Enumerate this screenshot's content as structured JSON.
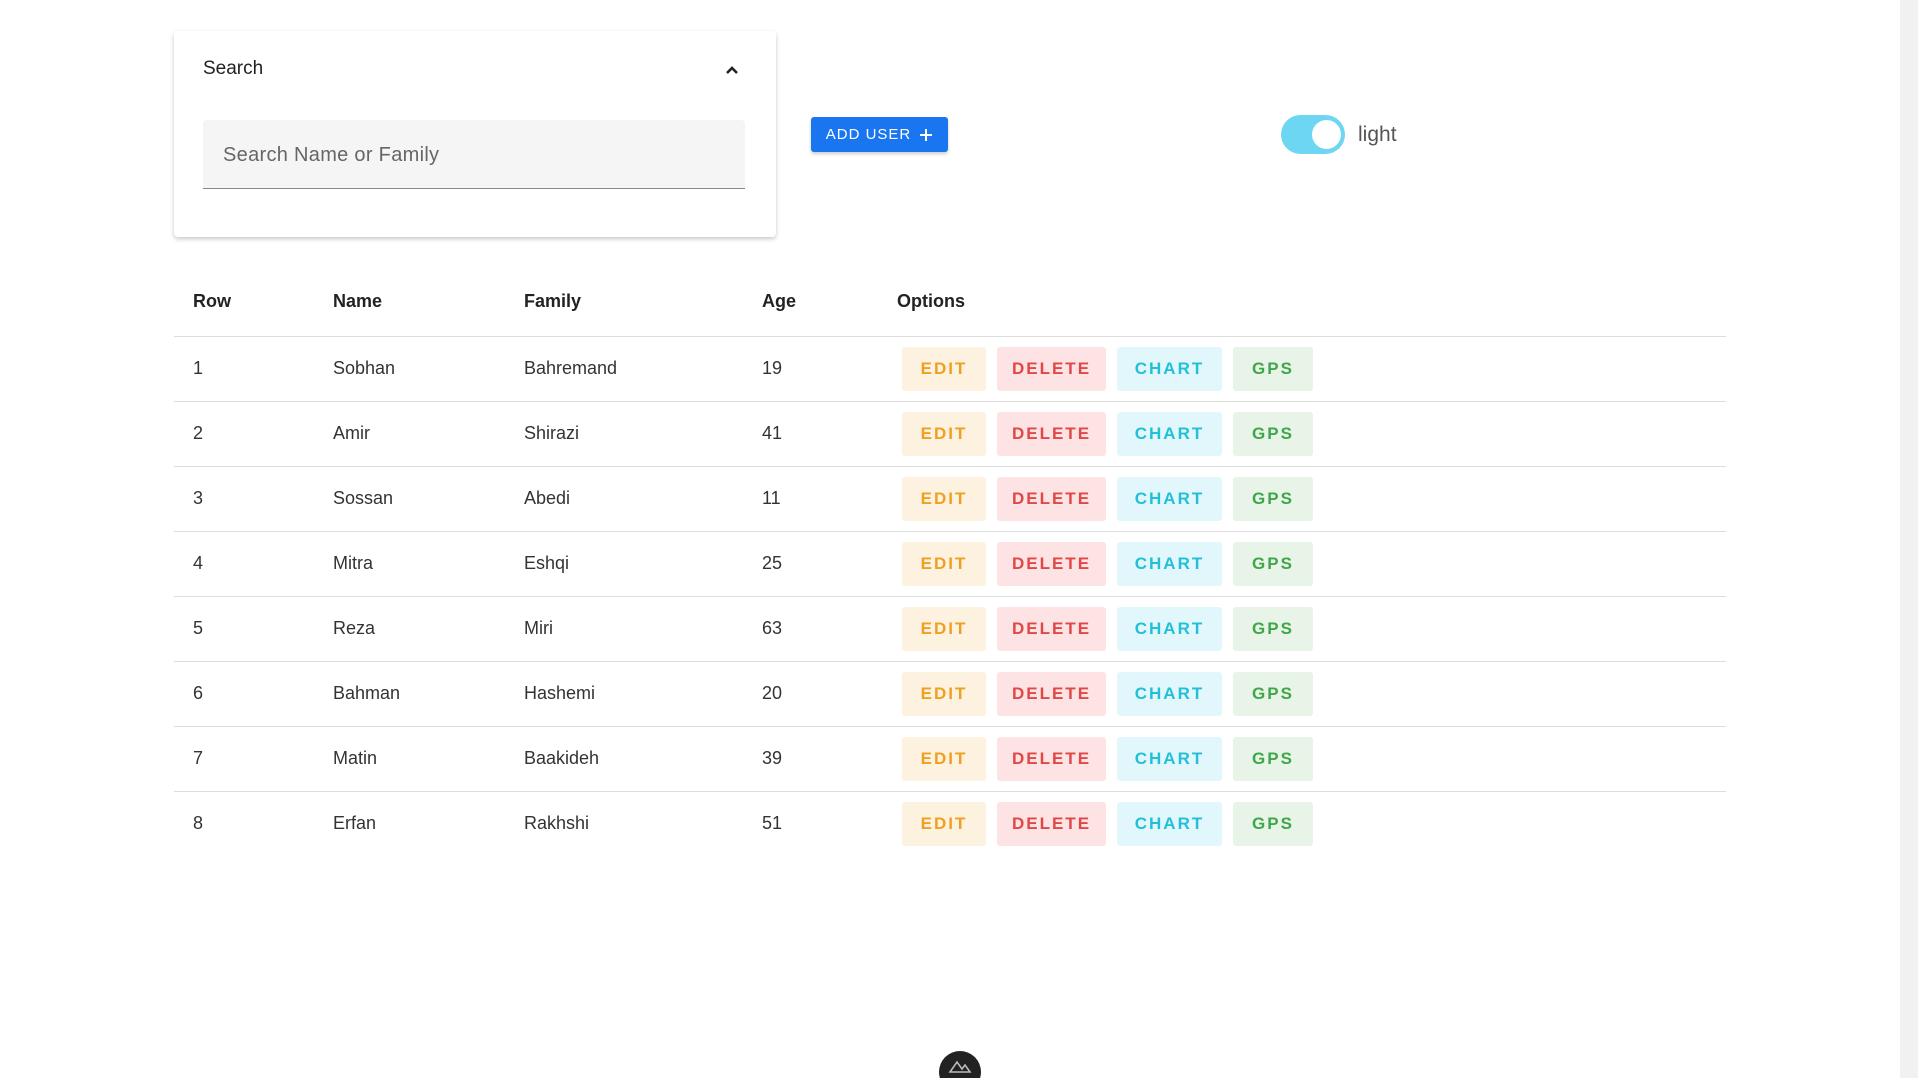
{
  "search": {
    "title": "Search",
    "placeholder": "Search Name or Family"
  },
  "add_button": "ADD USER",
  "theme_toggle": {
    "label": "light"
  },
  "table": {
    "headers": [
      "Row",
      "Name",
      "Family",
      "Age",
      "Options"
    ],
    "actions": [
      "EDIT",
      "DELETE",
      "CHART",
      "GPS"
    ],
    "rows": [
      [
        "1",
        "Sobhan",
        "Bahremand",
        "19"
      ],
      [
        "2",
        "Amir",
        "Shirazi",
        "41"
      ],
      [
        "3",
        "Sossan",
        "Abedi",
        "11"
      ],
      [
        "4",
        "Mitra",
        "Eshqi",
        "25"
      ],
      [
        "5",
        "Reza",
        "Miri",
        "63"
      ],
      [
        "6",
        "Bahman",
        "Hashemi",
        "20"
      ],
      [
        "7",
        "Matin",
        "Baakideh",
        "39"
      ],
      [
        "8",
        "Erfan",
        "Rakhshi",
        "51"
      ]
    ]
  }
}
